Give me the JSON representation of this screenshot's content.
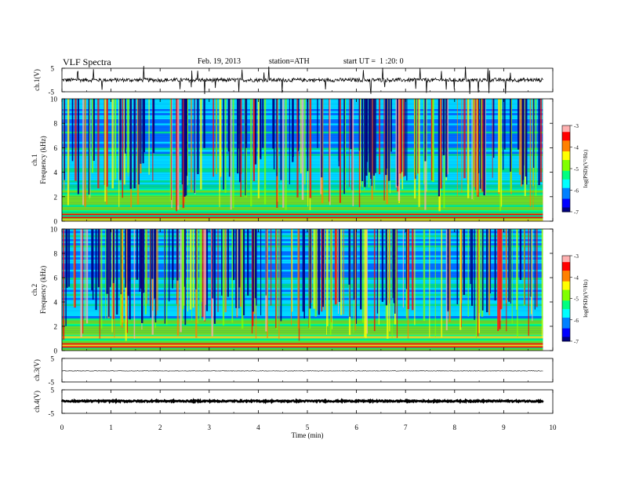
{
  "header": {
    "title": "VLF Spectra",
    "date": "Feb. 19, 2013",
    "station": "station=ATH",
    "start": "start UT =  1 :20: 0"
  },
  "colors": {
    "colormap": [
      "#000080",
      "#0000ff",
      "#0080ff",
      "#00ffff",
      "#00ff80",
      "#80ff00",
      "#ffff00",
      "#ff8000",
      "#ff0000",
      "#ffb0b0",
      "#ffffff"
    ],
    "trace": "#000000",
    "frame": "#000000"
  },
  "chart_data": [
    {
      "type": "line",
      "name_label": "ch.1(V)",
      "ylim": [
        -5,
        5
      ],
      "yticks": [
        "5",
        "-5"
      ],
      "xlim": [
        0,
        10
      ],
      "description_level": "noisy trace near 0 V with sparse spikes"
    },
    {
      "type": "heatmap",
      "channel_label": "ch.1",
      "ylabel": "Frequency (kHz)",
      "ylim": [
        0,
        10
      ],
      "yticks": [
        "0",
        "2",
        "4",
        "6",
        "8",
        "10"
      ],
      "xlim": [
        0,
        10
      ],
      "colorbar": {
        "label": "log(PSD)(V²/Hz)",
        "range": [
          -7,
          -3
        ],
        "ticks": [
          "-3",
          "-4",
          "-5",
          "-6",
          "-7"
        ]
      }
    },
    {
      "type": "heatmap",
      "channel_label": "ch.2",
      "ylabel": "Frequency (kHz)",
      "ylim": [
        0,
        10
      ],
      "yticks": [
        "0",
        "2",
        "4",
        "6",
        "8",
        "10"
      ],
      "xlim": [
        0,
        10
      ],
      "colorbar": {
        "label": "log(PSD)(V²/Hz)",
        "range": [
          -7,
          -3
        ],
        "ticks": [
          "-3",
          "-4",
          "-5",
          "-6",
          "-7"
        ]
      }
    },
    {
      "type": "line",
      "name_label": "ch.3(V)",
      "ylim": [
        -5,
        5
      ],
      "yticks": [
        "5",
        "-5"
      ],
      "xlim": [
        0,
        10
      ]
    },
    {
      "type": "line",
      "name_label": "ch.4(V)",
      "ylim": [
        -5,
        5
      ],
      "yticks": [
        "5",
        "-5"
      ],
      "xlim": [
        0,
        10
      ]
    }
  ],
  "xaxis": {
    "label": "Time (min)",
    "ticks": [
      "0",
      "1",
      "2",
      "3",
      "4",
      "5",
      "6",
      "7",
      "8",
      "9",
      "10"
    ],
    "xlim": [
      0,
      10
    ],
    "data_end": 9.8
  }
}
